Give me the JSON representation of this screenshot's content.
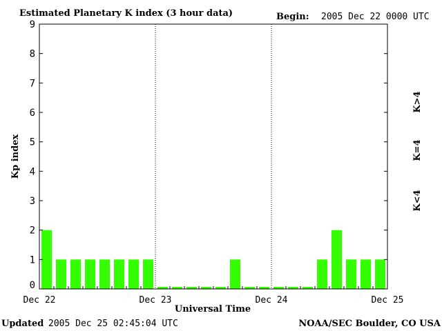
{
  "header": {
    "title": "Estimated Planetary K index (3 hour data)",
    "begin_label": "Begin:",
    "begin_value": "2005 Dec 22 0000 UTC"
  },
  "footer": {
    "updated_label": "Updated",
    "updated_value": "2005 Dec 25 02:45:04 UTC",
    "source": "NOAA/SEC Boulder, CO USA"
  },
  "legend": {
    "high": {
      "label": "K>4",
      "color": "#ff2a00"
    },
    "mid": {
      "label": "K=4",
      "color": "#ffd200"
    },
    "low": {
      "label": "K<4",
      "color": "#33ff00"
    }
  },
  "chart_data": {
    "type": "bar",
    "title": "Estimated Planetary K index (3 hour data)",
    "xlabel": "Universal Time",
    "ylabel": "Kp index",
    "ylim": [
      0,
      9
    ],
    "yticks": [
      0,
      1,
      2,
      3,
      4,
      5,
      6,
      7,
      8,
      9
    ],
    "x_ticks": [
      "Dec 22",
      "Dec 23",
      "Dec 24",
      "Dec 25"
    ],
    "bars_per_day": 8,
    "values": [
      2,
      1,
      1,
      1,
      1,
      1,
      1,
      1,
      0,
      0,
      0,
      0,
      0,
      1,
      0,
      0,
      0,
      0,
      0,
      1,
      2,
      1,
      1,
      1
    ],
    "bar_color": "#33ff00"
  }
}
